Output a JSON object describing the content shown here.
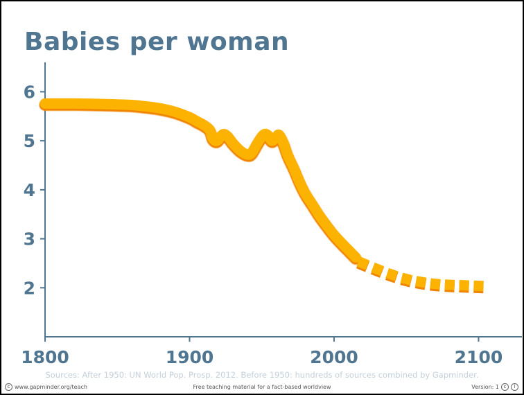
{
  "colors": {
    "title": "#4f7591",
    "axis": "#4f7591",
    "line_main": "#fcb200",
    "line_shadow": "#f08300"
  },
  "chart_data": {
    "type": "line",
    "title": "Babies per woman",
    "xlabel": "",
    "ylabel": "",
    "xlim": [
      1800,
      2130
    ],
    "ylim": [
      1,
      6.6
    ],
    "xticks": [
      "1800",
      "1900",
      "2000",
      "2100"
    ],
    "yticks": [
      "2",
      "3",
      "4",
      "5",
      "6"
    ],
    "grid": false,
    "series": [
      {
        "style": "solid",
        "x": [
          1800,
          1820,
          1840,
          1860,
          1870,
          1880,
          1890,
          1900,
          1905,
          1910,
          1914,
          1916,
          1919,
          1923,
          1926,
          1930,
          1935,
          1940,
          1943,
          1947,
          1951,
          1954,
          1957,
          1960,
          1962,
          1965,
          1968,
          1972,
          1976,
          1980,
          1985,
          1990,
          1995,
          2000,
          2005,
          2010,
          2015
        ],
        "y": [
          5.76,
          5.76,
          5.75,
          5.73,
          5.7,
          5.66,
          5.59,
          5.48,
          5.4,
          5.32,
          5.22,
          5.05,
          5.0,
          5.13,
          5.1,
          4.95,
          4.8,
          4.72,
          4.75,
          4.95,
          5.12,
          5.12,
          5.0,
          5.08,
          5.12,
          4.95,
          4.7,
          4.45,
          4.17,
          3.93,
          3.7,
          3.47,
          3.27,
          3.08,
          2.92,
          2.77,
          2.62
        ]
      },
      {
        "style": "dashed",
        "x": [
          2020,
          2030,
          2040,
          2050,
          2060,
          2070,
          2080,
          2090,
          2100
        ],
        "y": [
          2.5,
          2.38,
          2.27,
          2.18,
          2.12,
          2.08,
          2.06,
          2.05,
          2.04
        ]
      }
    ]
  },
  "sources_text": "Sources: After 1950: UN World Pop. Prosp. 2012. Before 1950: hundreds of sources combined by Gapminder.",
  "footer": {
    "left": "www.gapminder.org/teach",
    "center": "Free teaching material for a fact-based worldview",
    "right": "Version: 1"
  }
}
